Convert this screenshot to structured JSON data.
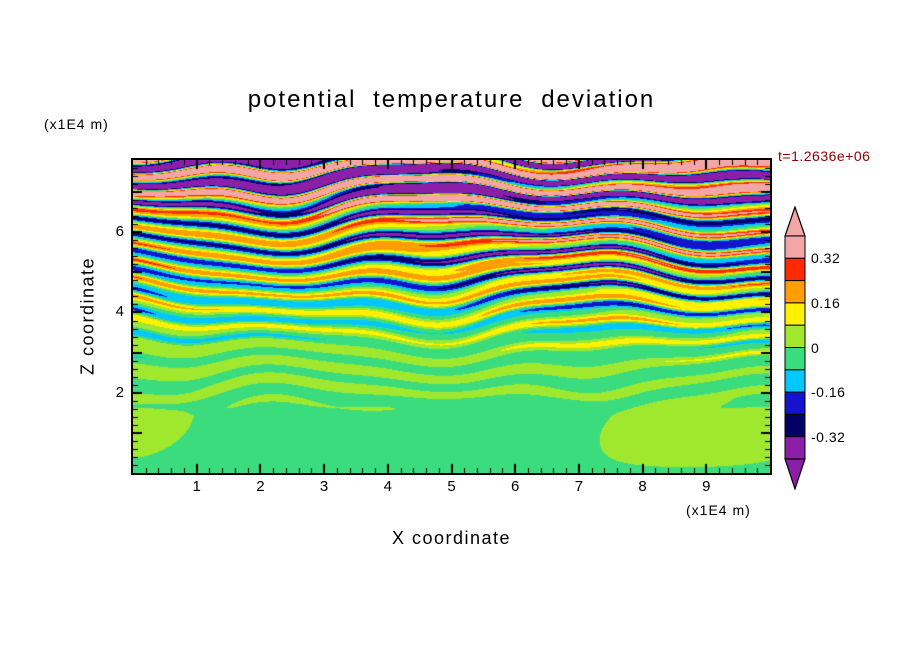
{
  "chart_data": {
    "type": "heatmap",
    "title": "potential temperature deviation",
    "xlabel": "X coordinate",
    "ylabel": "Z coordinate",
    "x_units": "(x1E4 m)",
    "y_units": "(x1E4 m)",
    "time_label": "t=1.2636e+06",
    "xlim": [
      0,
      10
    ],
    "ylim": [
      0,
      7.8
    ],
    "x_ticks": [
      1,
      2,
      3,
      4,
      5,
      6,
      7,
      8,
      9
    ],
    "y_ticks": [
      2,
      4,
      6
    ],
    "x_minor_tick_step": 0.2,
    "y_minor_tick_step": 0.2,
    "grid": false,
    "legend_position": "right-colorbar",
    "colorbar": {
      "orientation": "vertical",
      "labels": [
        "0.32",
        "0.16",
        "0",
        "-0.16",
        "-0.32"
      ],
      "level_edges": [
        -0.4,
        -0.32,
        -0.24,
        -0.16,
        -0.08,
        0,
        0.08,
        0.16,
        0.24,
        0.32,
        0.4
      ],
      "band_colors_low_to_high": [
        "#8B1FA8",
        "#000066",
        "#1414CC",
        "#00C8FF",
        "#3BDC7E",
        "#9FE82E",
        "#FFF100",
        "#FF9E00",
        "#FF2A00",
        "#F2A6A6"
      ],
      "arrow_low_color": "#8B1FA8",
      "arrow_high_color": "#F2A6A6"
    },
    "colors": {
      "frame": "#000000",
      "text": "#000000",
      "time_label": "#8B0000",
      "background": "#FFFFFF"
    }
  }
}
